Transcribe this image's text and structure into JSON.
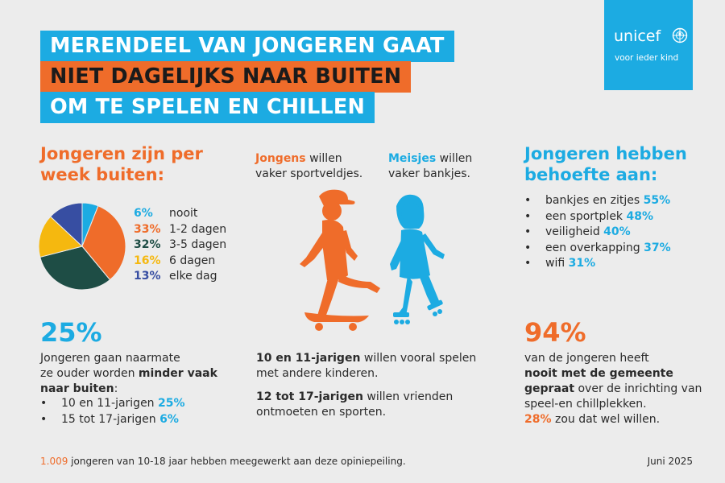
{
  "title": {
    "line1": "MERENDEEL VAN JONGEREN GAAT",
    "line2": "NIET DAGELIJKS NAAR BUITEN",
    "line3": "OM TE SPELEN EN CHILLEN"
  },
  "logo": {
    "word": "unicef",
    "tagline": "voor ieder kind"
  },
  "colors": {
    "blue": "#1cabe2",
    "orange": "#ef6c2a",
    "dark_green": "#1e4d45",
    "yellow": "#f5b80f",
    "indigo": "#374ea2"
  },
  "left": {
    "heading_line1": "Jongeren zijn per",
    "heading_line2": "week buiten:",
    "big_number": "25%",
    "para_part1": "Jongeren gaan naarmate",
    "para_part2": "ze ouder worden",
    "para_bold": "minder vaak naar buiten",
    "para_colon": ":",
    "bullets": [
      {
        "text": "10 en 11-jarigen",
        "value": "25%"
      },
      {
        "text": "15 tot 17-jarigen",
        "value": "6%"
      }
    ]
  },
  "chart_data": {
    "type": "pie",
    "title": "Jongeren zijn per week buiten:",
    "slices": [
      {
        "label": "nooit",
        "value": 6,
        "pct_label": "6%",
        "color": "#1cabe2"
      },
      {
        "label": "1-2 dagen",
        "value": 33,
        "pct_label": "33%",
        "color": "#ef6c2a"
      },
      {
        "label": "3-5 dagen",
        "value": 32,
        "pct_label": "32%",
        "color": "#1e4d45"
      },
      {
        "label": "6 dagen",
        "value": 16,
        "pct_label": "16%",
        "color": "#f5b80f"
      },
      {
        "label": "elke dag",
        "value": 13,
        "pct_label": "13%",
        "color": "#374ea2"
      }
    ]
  },
  "middle": {
    "boys_bold": "Jongens",
    "boys_rest1": " willen",
    "boys_line2": "vaker sportveldjes.",
    "girls_bold": "Meisjes",
    "girls_rest1": " willen",
    "girls_line2": "vaker bankjes.",
    "stat1_bold": "10 en 11-jarigen",
    "stat1_rest": " willen vooral spelen met andere kinderen.",
    "stat2_bold": "12 tot 17-jarigen",
    "stat2_rest": " willen vrienden ontmoeten en sporten."
  },
  "right": {
    "heading_line1": "Jongeren hebben",
    "heading_line2": "behoefte aan:",
    "needs": [
      {
        "label": "bankjes en zitjes",
        "value": "55%"
      },
      {
        "label": "een sportplek",
        "value": "48%"
      },
      {
        "label": "veiligheid",
        "value": "40%"
      },
      {
        "label": "een overkapping",
        "value": "37%"
      },
      {
        "label": "wifi",
        "value": "31%"
      }
    ],
    "big_number": "94%",
    "para_part1": "van de jongeren heeft",
    "para_bold": "nooit met de gemeente gepraat",
    "para_part2": " over de inrichting van speel-en chillplekken.",
    "para_highlight": "28%",
    "para_part3": " zou dat wel willen."
  },
  "footer": {
    "count": "1.009",
    "text": " jongeren van 10-18 jaar hebben meegewerkt aan deze opiniepeiling.",
    "date": "Juni 2025"
  }
}
